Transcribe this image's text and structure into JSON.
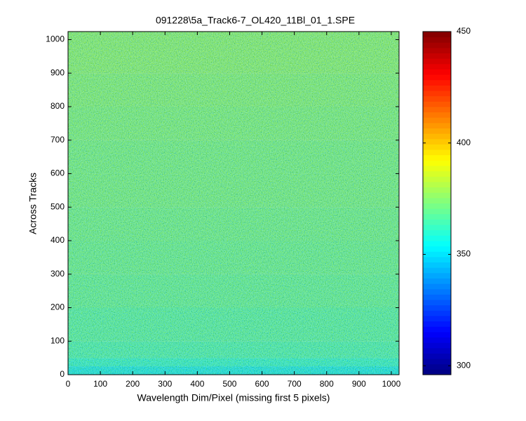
{
  "chart_data": {
    "type": "heatmap",
    "title": "091228\\5a_Track6-7_OL420_11Bl_01_1.SPE",
    "x_label": "Wavelength Dim/Pixel (missing first 5 pixels)",
    "y_label": "Across Tracks",
    "xlim": [
      0,
      1024
    ],
    "xticks": [
      0,
      100,
      200,
      300,
      400,
      500,
      600,
      700,
      800,
      900,
      1000
    ],
    "ylim": [
      0,
      1024
    ],
    "yticks": [
      0,
      100,
      200,
      300,
      400,
      500,
      600,
      700,
      800,
      900,
      1000
    ],
    "y_bins": [
      0,
      25,
      50,
      100,
      200,
      300,
      400,
      500,
      600,
      700,
      800,
      900,
      1024
    ],
    "values": [
      352,
      358,
      362,
      364,
      366,
      367,
      368,
      369,
      369,
      370,
      371,
      372
    ],
    "colormap": "jet",
    "clim": [
      296,
      450
    ],
    "cticks": [
      300,
      350,
      400,
      450
    ]
  }
}
